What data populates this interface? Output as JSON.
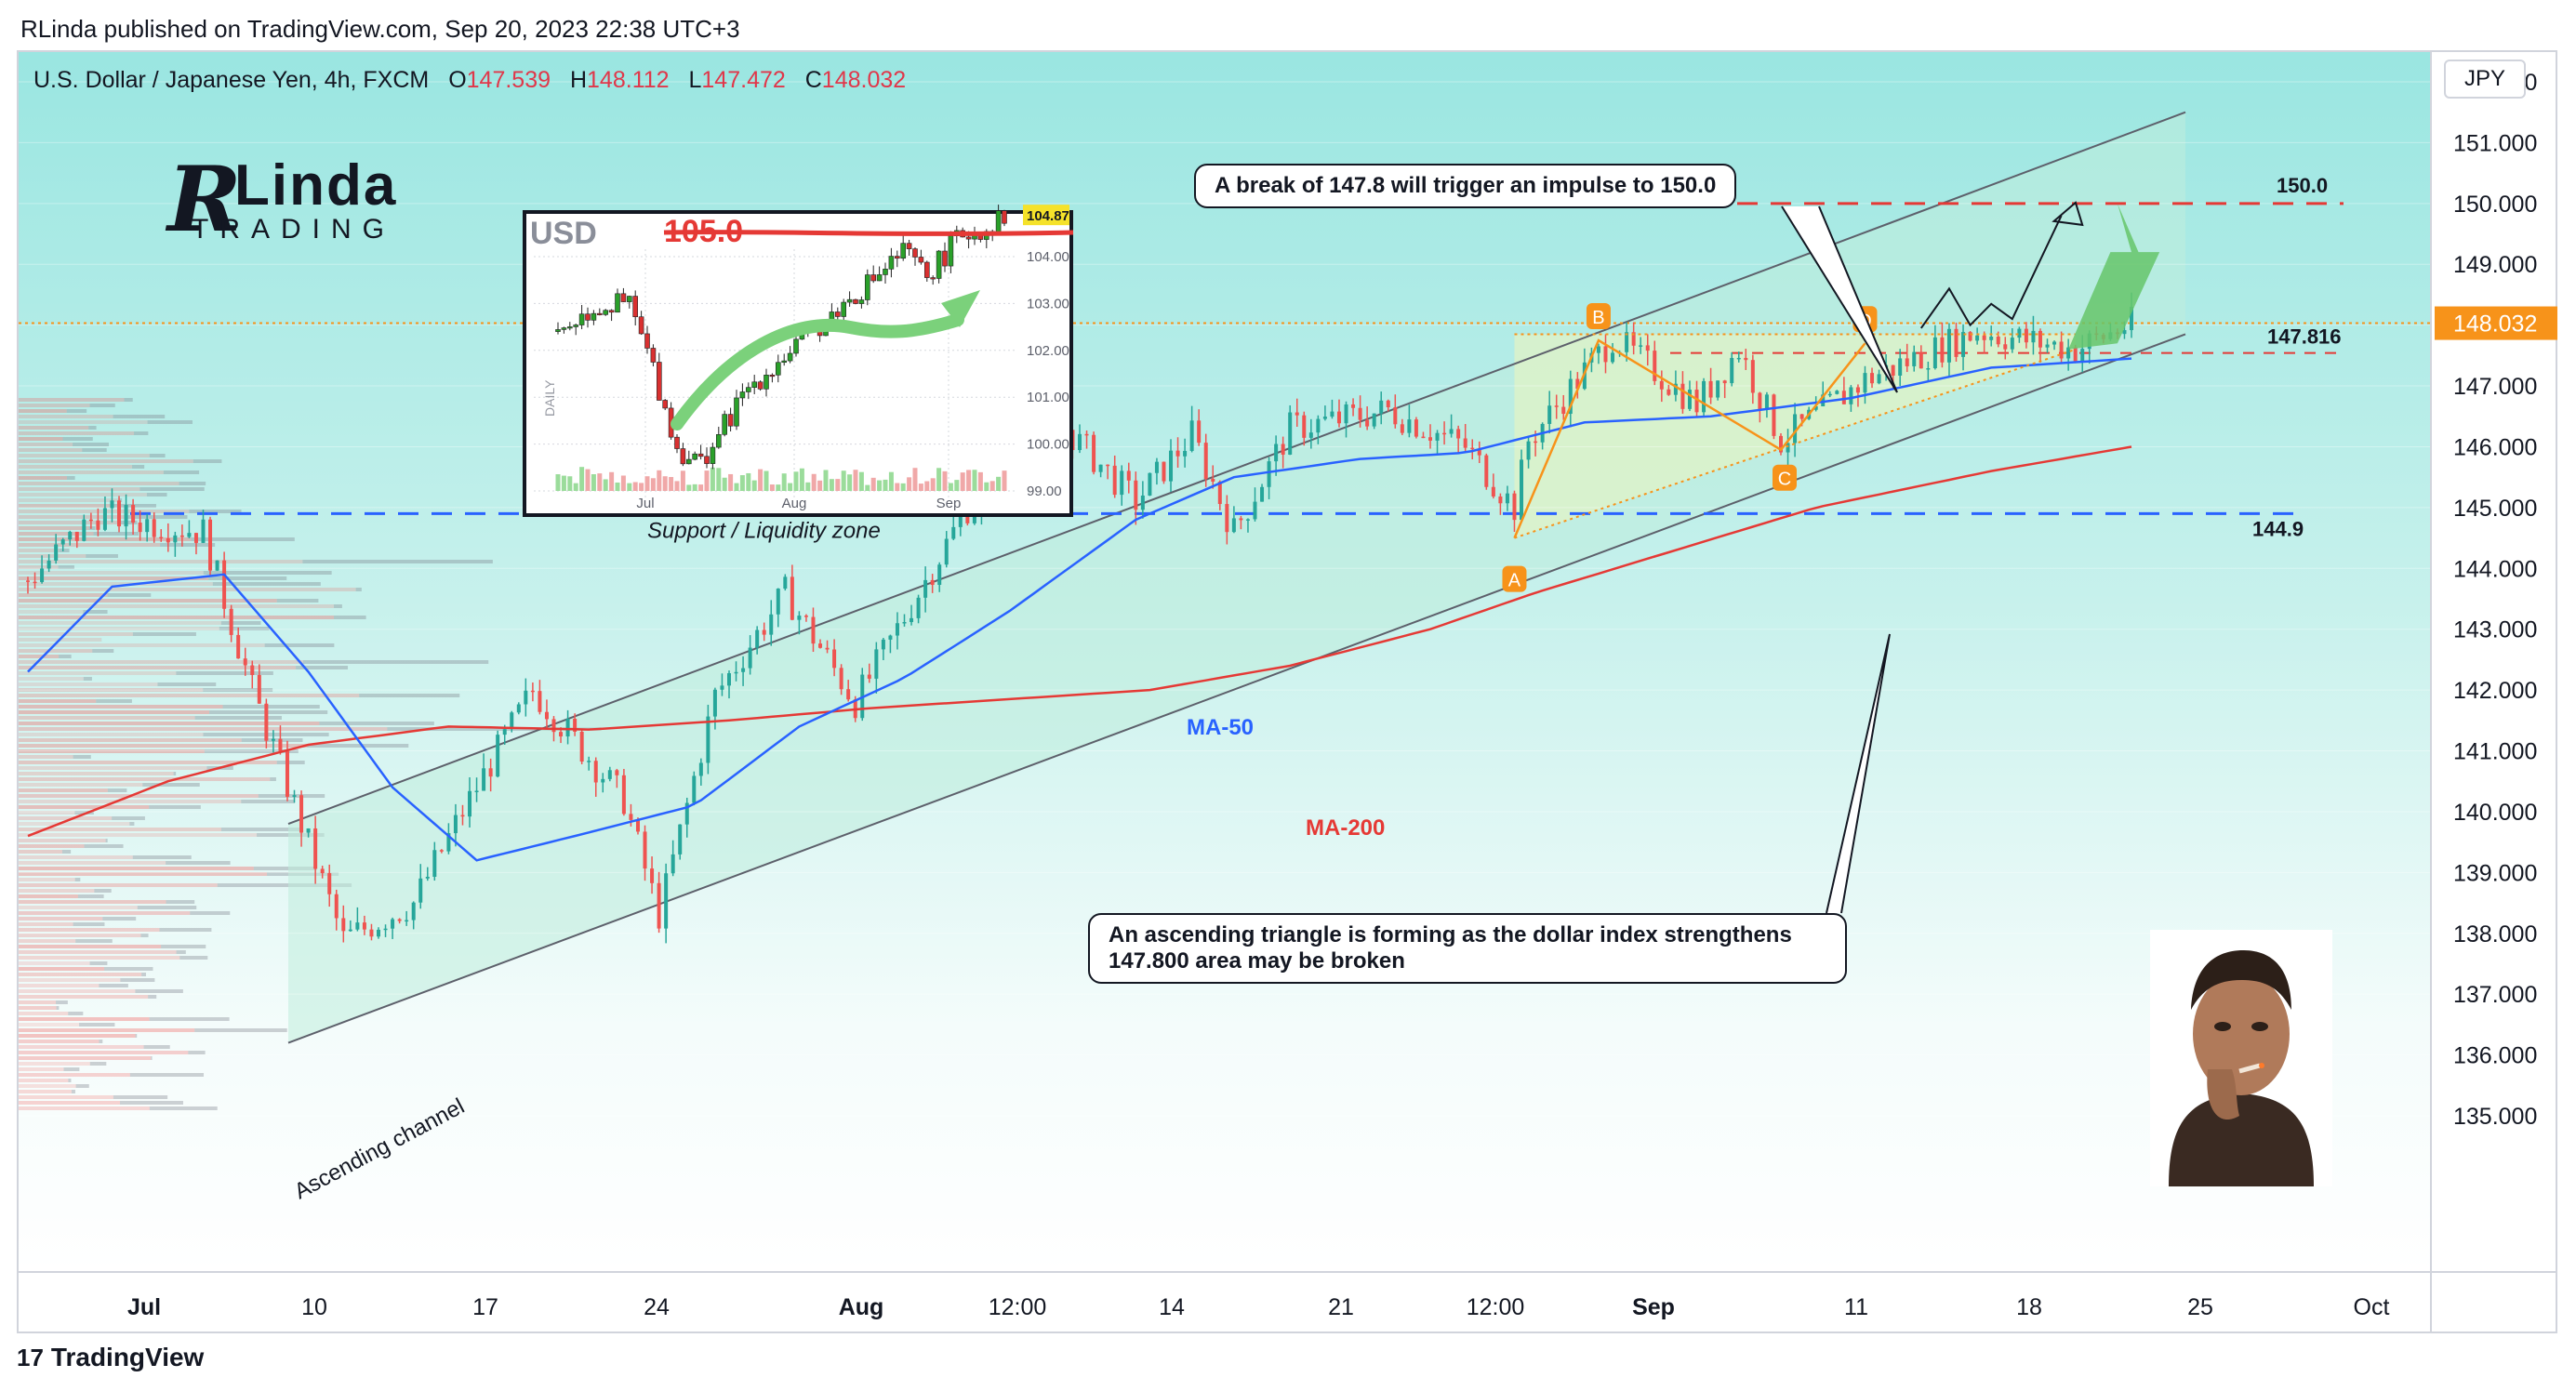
{
  "header": {
    "published": "RLinda published on TradingView.com, Sep 20, 2023 22:38 UTC+3",
    "symbol": "U.S. Dollar / Japanese Yen, 4h, FXCM",
    "ohlc": [
      {
        "label": "O",
        "value": "147.539"
      },
      {
        "label": "H",
        "value": "148.112"
      },
      {
        "label": "L",
        "value": "147.472"
      },
      {
        "label": "C",
        "value": "148.032"
      }
    ],
    "currency_button": "JPY"
  },
  "brand": {
    "letter": "R",
    "name": "Linda",
    "sub": "TRADING"
  },
  "footer": {
    "logo": "17",
    "label": "TradingView"
  },
  "callouts": {
    "top": "A break of 147.8 will trigger an impulse to 150.0",
    "bottom_line1": "An ascending triangle is forming as the dollar index strengthens",
    "bottom_line2": "147.800 area may be broken"
  },
  "colors": {
    "bull": "#26a69a",
    "bear": "#ef5350",
    "ma50": "#2962ff",
    "ma200": "#e53935",
    "support": "#2962ff",
    "target": "#e53935",
    "channel_fill": "#b7ecd9",
    "sky": "#9ae6e1",
    "pattern_label": "#f7931a"
  },
  "chart_data": [
    {
      "type": "candlestick",
      "title": "U.S. Dollar / Japanese Yen, 4h, FXCM",
      "x_ticks": [
        "Jul",
        "10",
        "17",
        "24",
        "Aug",
        "12:00",
        "14",
        "21",
        "12:00",
        "Sep",
        "11",
        "18",
        "25",
        "Oct"
      ],
      "y_ticks": [
        "152.000",
        "151.000",
        "150.000",
        "149.000",
        "148.000",
        "147.000",
        "146.000",
        "145.000",
        "144.000",
        "143.000",
        "142.000",
        "141.000",
        "140.000",
        "139.000",
        "138.000",
        "137.000",
        "136.000",
        "135.000"
      ],
      "ylim": [
        134.8,
        152.9
      ],
      "last_price": "148.032",
      "anchor_points": [
        {
          "i": 0,
          "p": 143.8
        },
        {
          "i": 10,
          "p": 144.9
        },
        {
          "i": 25,
          "p": 144.6
        },
        {
          "i": 32,
          "p": 142.0
        },
        {
          "i": 45,
          "p": 137.9
        },
        {
          "i": 55,
          "p": 138.5
        },
        {
          "i": 62,
          "p": 140.0
        },
        {
          "i": 72,
          "p": 142.0
        },
        {
          "i": 85,
          "p": 140.2
        },
        {
          "i": 90,
          "p": 138.3
        },
        {
          "i": 98,
          "p": 141.9
        },
        {
          "i": 108,
          "p": 143.6
        },
        {
          "i": 118,
          "p": 141.8
        },
        {
          "i": 124,
          "p": 143.0
        },
        {
          "i": 134,
          "p": 145.0
        },
        {
          "i": 148,
          "p": 146.3
        },
        {
          "i": 158,
          "p": 145.1
        },
        {
          "i": 166,
          "p": 146.2
        },
        {
          "i": 172,
          "p": 144.6
        },
        {
          "i": 180,
          "p": 146.3
        },
        {
          "i": 194,
          "p": 146.6
        },
        {
          "i": 205,
          "p": 146.0
        },
        {
          "i": 212,
          "p": 145.0
        },
        {
          "i": 214,
          "p": 146.1
        },
        {
          "i": 226,
          "p": 147.8
        },
        {
          "i": 238,
          "p": 146.7
        },
        {
          "i": 244,
          "p": 147.6
        },
        {
          "i": 250,
          "p": 146.1
        },
        {
          "i": 262,
          "p": 147.1
        },
        {
          "i": 272,
          "p": 147.6
        },
        {
          "i": 278,
          "p": 147.9
        },
        {
          "i": 292,
          "p": 147.6
        },
        {
          "i": 300,
          "p": 148.03
        }
      ],
      "ma50_points": [
        {
          "i": 0,
          "p": 142.3
        },
        {
          "i": 12,
          "p": 143.7
        },
        {
          "i": 28,
          "p": 143.9
        },
        {
          "i": 40,
          "p": 142.3
        },
        {
          "i": 52,
          "p": 140.4
        },
        {
          "i": 64,
          "p": 139.2
        },
        {
          "i": 78,
          "p": 139.6
        },
        {
          "i": 95,
          "p": 140.1
        },
        {
          "i": 110,
          "p": 141.4
        },
        {
          "i": 125,
          "p": 142.2
        },
        {
          "i": 140,
          "p": 143.3
        },
        {
          "i": 158,
          "p": 144.8
        },
        {
          "i": 172,
          "p": 145.5
        },
        {
          "i": 190,
          "p": 145.8
        },
        {
          "i": 205,
          "p": 145.9
        },
        {
          "i": 222,
          "p": 146.4
        },
        {
          "i": 240,
          "p": 146.5
        },
        {
          "i": 260,
          "p": 146.8
        },
        {
          "i": 280,
          "p": 147.3
        },
        {
          "i": 300,
          "p": 147.45
        }
      ],
      "ma200_points": [
        {
          "i": 0,
          "p": 139.6
        },
        {
          "i": 20,
          "p": 140.5
        },
        {
          "i": 40,
          "p": 141.1
        },
        {
          "i": 60,
          "p": 141.4
        },
        {
          "i": 80,
          "p": 141.35
        },
        {
          "i": 100,
          "p": 141.5
        },
        {
          "i": 120,
          "p": 141.7
        },
        {
          "i": 140,
          "p": 141.85
        },
        {
          "i": 160,
          "p": 142.0
        },
        {
          "i": 180,
          "p": 142.4
        },
        {
          "i": 200,
          "p": 143.0
        },
        {
          "i": 215,
          "p": 143.6
        },
        {
          "i": 235,
          "p": 144.3
        },
        {
          "i": 255,
          "p": 145.0
        },
        {
          "i": 280,
          "p": 145.6
        },
        {
          "i": 300,
          "p": 146.0
        }
      ],
      "levels": [
        {
          "name": "target",
          "value": 150.0,
          "label": "150.0"
        },
        {
          "name": "resistance",
          "value": 147.816,
          "label": "147.816"
        },
        {
          "name": "support",
          "value": 144.9,
          "label": "144.9",
          "caption": "Support / Liquidity zone"
        }
      ],
      "channel": {
        "lower": [
          {
            "i": 0,
            "p": 136.2
          },
          {
            "i": 310,
            "p": 147.85
          }
        ],
        "upper": [
          {
            "i": 0,
            "p": 139.8
          },
          {
            "i": 310,
            "p": 151.5
          }
        ],
        "label": "Ascending channel"
      },
      "pattern": [
        {
          "label": "A",
          "i": 212,
          "p": 144.5
        },
        {
          "label": "B",
          "i": 224,
          "p": 147.75
        },
        {
          "label": "C",
          "i": 250,
          "p": 145.95
        },
        {
          "label": "D",
          "i": 262,
          "p": 147.7
        }
      ],
      "ma_labels": [
        "MA-50",
        "MA-200"
      ]
    },
    {
      "type": "candlestick",
      "title": "USD",
      "panel_label": "DAILY",
      "x_ticks": [
        "Jul",
        "Aug",
        "Sep"
      ],
      "y_ticks": [
        "104.00",
        "103.00",
        "102.00",
        "101.00",
        "100.00",
        "99.00"
      ],
      "ylim": [
        98.8,
        105.6
      ],
      "level": "105.0",
      "last_price": "104.87",
      "anchor_points": [
        {
          "i": 0,
          "p": 102.4
        },
        {
          "i": 6,
          "p": 102.9
        },
        {
          "i": 12,
          "p": 103.0
        },
        {
          "i": 16,
          "p": 101.6
        },
        {
          "i": 20,
          "p": 99.9
        },
        {
          "i": 24,
          "p": 99.6
        },
        {
          "i": 32,
          "p": 101.2
        },
        {
          "i": 40,
          "p": 102.1
        },
        {
          "i": 50,
          "p": 103.2
        },
        {
          "i": 58,
          "p": 104.1
        },
        {
          "i": 62,
          "p": 103.6
        },
        {
          "i": 68,
          "p": 104.5
        },
        {
          "i": 72,
          "p": 104.6
        },
        {
          "i": 75,
          "p": 104.87
        }
      ]
    }
  ]
}
